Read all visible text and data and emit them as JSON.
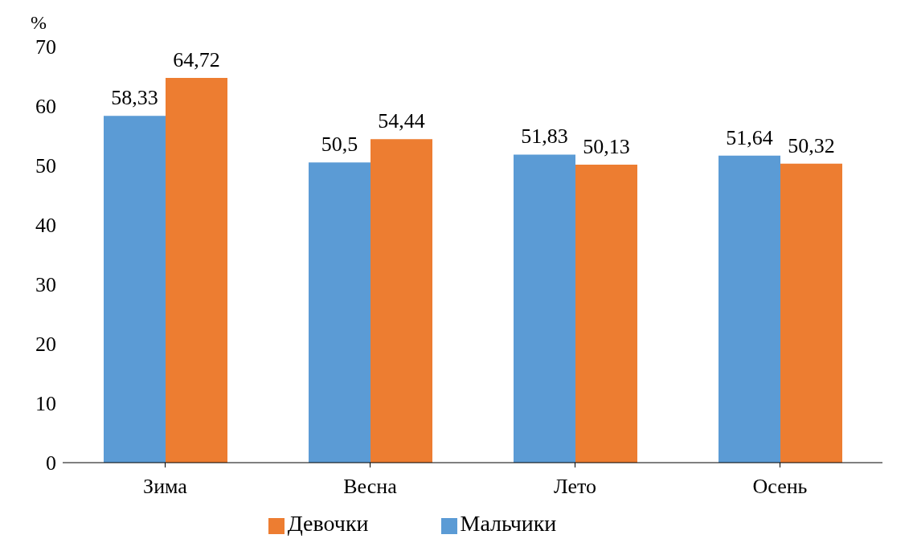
{
  "chart_data": {
    "type": "bar",
    "ylabel": "%",
    "categories": [
      "Зима",
      "Весна",
      "Лето",
      "Осень"
    ],
    "series": [
      {
        "name": "Мальчики",
        "color": "#5b9bd5",
        "values": [
          58.33,
          50.5,
          51.83,
          51.64
        ],
        "value_labels": [
          "58,33",
          "50,5",
          "51,83",
          "51,64"
        ]
      },
      {
        "name": "Девочки",
        "color": "#ed7d31",
        "values": [
          64.72,
          54.44,
          50.13,
          50.32
        ],
        "value_labels": [
          "64,72",
          "54,44",
          "50,13",
          "50,32"
        ]
      }
    ],
    "ylim": [
      0,
      70
    ],
    "yticks": [
      0,
      10,
      20,
      30,
      40,
      50,
      60,
      70
    ],
    "legend": "bottom"
  }
}
